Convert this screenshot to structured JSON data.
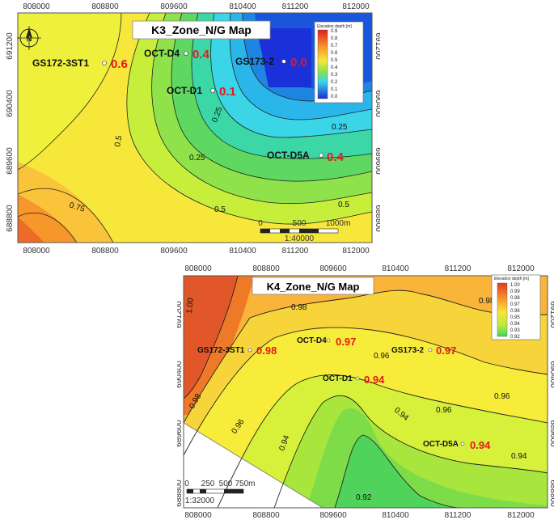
{
  "maps": [
    {
      "title": "K3_Zone_N/G Map",
      "x_ticks": [
        "808000",
        "808800",
        "809600",
        "810400",
        "811200",
        "812000"
      ],
      "y_ticks": [
        "691200",
        "690400",
        "689600",
        "688800"
      ],
      "contour_labels": [
        "0.75",
        "0.5",
        "0.25",
        "0.25",
        "0.25",
        "0.5",
        "0.5"
      ],
      "wells": [
        {
          "name": "GS172-3ST1",
          "value": "0.6"
        },
        {
          "name": "OCT-D4",
          "value": "0.4"
        },
        {
          "name": "GS173-2",
          "value": "0.0"
        },
        {
          "name": "OCT-D1",
          "value": "0.1"
        },
        {
          "name": "OCT-D5A",
          "value": "0.4"
        }
      ],
      "legend": {
        "title": "Elevation depth [m]",
        "ticks": [
          "0.9",
          "0.8",
          "0.7",
          "0.6",
          "0.5",
          "0.4",
          "0.3",
          "0.2",
          "0.1",
          "0.0"
        ]
      },
      "scale_bar": {
        "labels": [
          "0",
          "500",
          "1000m"
        ],
        "ratio": "1:40000"
      },
      "north_arrow": "N"
    },
    {
      "title": "K4_Zone_N/G Map",
      "x_ticks": [
        "808000",
        "808800",
        "809600",
        "810400",
        "811200",
        "812000"
      ],
      "y_ticks": [
        "691200",
        "690400",
        "689600",
        "688800"
      ],
      "contour_labels": [
        "1.00",
        "0.98",
        "0.98",
        "0.98",
        "0.96",
        "0.96",
        "0.96",
        "0.94",
        "0.94",
        "0.94",
        "0.96",
        "0.92"
      ],
      "wells": [
        {
          "name": "GS172-3ST1",
          "value": "0.98"
        },
        {
          "name": "OCT-D4",
          "value": "0.97"
        },
        {
          "name": "GS173-2",
          "value": "0.97"
        },
        {
          "name": "OCT-D1",
          "value": "0.94"
        },
        {
          "name": "OCT-D5A",
          "value": "0.94"
        }
      ],
      "legend": {
        "title": "Elevation depth [m]",
        "ticks": [
          "1.00",
          "0.99",
          "0.98",
          "0.97",
          "0.96",
          "0.95",
          "0.94",
          "0.93",
          "0.92"
        ]
      },
      "scale_bar": {
        "labels": [
          "0",
          "250",
          "500",
          "750m"
        ],
        "ratio": "1:32000"
      }
    }
  ],
  "colors": {
    "red": "#e8421f",
    "orange": "#f7962b",
    "yellow": "#f7e73a",
    "lime": "#c7ee3a",
    "green": "#55d05a",
    "cyan": "#3bd5e8",
    "blue": "#1a30d8",
    "value_red": "#e21b1b"
  }
}
